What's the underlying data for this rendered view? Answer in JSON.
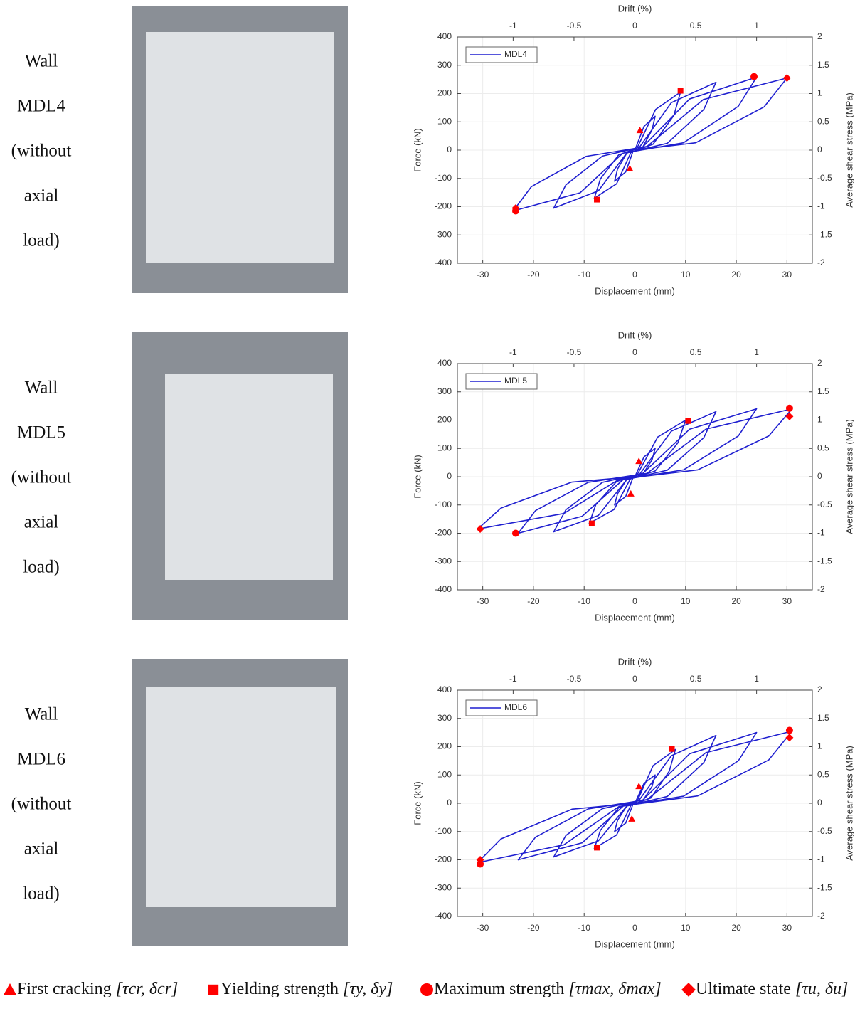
{
  "panels": [
    {
      "label_lines": [
        "Wall",
        "MDL4",
        "(without",
        "axial",
        "load)"
      ]
    },
    {
      "label_lines": [
        "Wall",
        "MDL5",
        "(without",
        "axial",
        "load)"
      ]
    },
    {
      "label_lines": [
        "Wall",
        "MDL6",
        "(without",
        "axial",
        "load)"
      ]
    }
  ],
  "legend": [
    {
      "label": "First cracking",
      "notation": "[τcr, δcr]",
      "color": "#ff0000"
    },
    {
      "label": "Yielding strength",
      "notation": "[τy, δy]",
      "color": "#ff0000"
    },
    {
      "label": "Maximum strength",
      "notation": "[τmax, δmax]",
      "color": "#ff0000"
    },
    {
      "label": "Ultimate state",
      "notation": "[τu, δu]",
      "color": "#ff0000"
    }
  ],
  "chart_data": [
    {
      "type": "line",
      "x_label": "Displacement (mm)",
      "y_label": "Force (kN)",
      "x2_label": "Drift (%)",
      "y2_label": "Average shear stress (MPa)",
      "xlim": [
        -35,
        35
      ],
      "xticks": [
        -30,
        -20,
        -10,
        0,
        10,
        20,
        30
      ],
      "ylim": [
        -400,
        400
      ],
      "yticks": [
        -400,
        -300,
        -200,
        -100,
        0,
        100,
        200,
        300,
        400
      ],
      "x2lim": [
        -1.458,
        1.458
      ],
      "x2ticks": [
        -1,
        -0.5,
        0,
        0.5,
        1
      ],
      "y2lim": [
        -2,
        2
      ],
      "y2ticks": [
        -2,
        -1.5,
        -1,
        -0.5,
        0,
        0.5,
        1,
        1.5,
        2
      ],
      "grid": true,
      "series": [
        {
          "name": "MDL4",
          "color": "#1f1fd0",
          "x": [
            0,
            1.8,
            4,
            3.4,
            1.6,
            -0.4,
            -1.8,
            -4,
            -3.4,
            -1.6,
            0.4,
            4.1,
            9,
            7.7,
            3.6,
            -0.8,
            -3.6,
            -8,
            -6.8,
            -3.2,
            0.9,
            7.2,
            16,
            13.6,
            6.4,
            -1.6,
            -7.2,
            -16,
            -13.6,
            -6.4,
            1.6,
            10.8,
            24,
            20.4,
            9.6,
            -2.4,
            -10.8,
            -24,
            -20.4,
            -9.6,
            2.4,
            13.5,
            30,
            25.5,
            12,
            0
          ],
          "values": [
            0,
            84,
            120,
            72,
            12,
            -6,
            -77,
            -110,
            -66,
            -11,
            6,
            144,
            205,
            123,
            21,
            -9,
            -119,
            -170,
            -102,
            -17,
            10,
            168,
            240,
            144,
            24,
            -10,
            -144,
            -205,
            -123,
            -21,
            12,
            181,
            258,
            155,
            26,
            -11,
            -151,
            -215,
            -129,
            -22,
            13,
            179,
            255,
            153,
            26,
            0
          ]
        }
      ],
      "markers": {
        "x": [
          1,
          -1,
          9,
          -7.5,
          23.5,
          -23.5,
          30,
          -23.5
        ],
        "values": [
          70,
          -65,
          210,
          -175,
          260,
          -215,
          255,
          -205
        ],
        "shape": [
          0,
          0,
          1,
          1,
          2,
          2,
          3,
          3
        ]
      }
    },
    {
      "type": "line",
      "x_label": "Displacement (mm)",
      "y_label": "Force (kN)",
      "x2_label": "Drift (%)",
      "y2_label": "Average shear stress (MPa)",
      "xlim": [
        -35,
        35
      ],
      "xticks": [
        -30,
        -20,
        -10,
        0,
        10,
        20,
        30
      ],
      "ylim": [
        -400,
        400
      ],
      "yticks": [
        -400,
        -300,
        -200,
        -100,
        0,
        100,
        200,
        300,
        400
      ],
      "x2lim": [
        -1.458,
        1.458
      ],
      "x2ticks": [
        -1,
        -0.5,
        0,
        0.5,
        1
      ],
      "y2lim": [
        -2,
        2
      ],
      "y2ticks": [
        -2,
        -1.5,
        -1,
        -0.5,
        0,
        0.5,
        1,
        1.5,
        2
      ],
      "grid": true,
      "series": [
        {
          "name": "MDL5",
          "color": "#1f1fd0",
          "x": [
            0,
            1.8,
            4,
            3.4,
            1.6,
            -0.4,
            -1.8,
            -4,
            -3.4,
            -1.6,
            0.4,
            4.5,
            10,
            8.5,
            4,
            -0.9,
            -4.1,
            -9,
            -7.7,
            -3.6,
            1,
            7.2,
            16,
            13.6,
            6.4,
            -1.6,
            -7.2,
            -16,
            -13.6,
            -6.4,
            1.6,
            10.8,
            24,
            20.4,
            9.6,
            -2.3,
            -10.4,
            -23,
            -19.6,
            -9.2,
            2.4,
            14,
            31,
            26.4,
            12.4,
            -3.1,
            -14,
            -31,
            -26.4,
            -12.4,
            0
          ],
          "values": [
            0,
            70,
            100,
            60,
            10,
            -5,
            -70,
            -100,
            -60,
            -10,
            5,
            140,
            200,
            120,
            20,
            -8,
            -116,
            -165,
            -99,
            -17,
            10,
            161,
            230,
            138,
            23,
            -10,
            -137,
            -195,
            -117,
            -20,
            12,
            168,
            240,
            144,
            24,
            -10,
            -140,
            -200,
            -120,
            -20,
            12,
            168,
            240,
            144,
            24,
            -9,
            -130,
            -185,
            -111,
            -19,
            0
          ]
        }
      ],
      "markers": {
        "x": [
          0.8,
          -0.8,
          10.5,
          -8.5,
          30.5,
          -23.5,
          30.5,
          -30.5
        ],
        "values": [
          55,
          -60,
          197,
          -165,
          242,
          -200,
          213,
          -185
        ],
        "shape": [
          0,
          0,
          1,
          1,
          2,
          2,
          3,
          3
        ]
      }
    },
    {
      "type": "line",
      "x_label": "Displacement (mm)",
      "y_label": "Force (kN)",
      "x2_label": "Drift (%)",
      "y2_label": "Average shear stress (MPa)",
      "xlim": [
        -35,
        35
      ],
      "xticks": [
        -30,
        -20,
        -10,
        0,
        10,
        20,
        30
      ],
      "ylim": [
        -400,
        400
      ],
      "yticks": [
        -400,
        -300,
        -200,
        -100,
        0,
        100,
        200,
        300,
        400
      ],
      "x2lim": [
        -1.458,
        1.458
      ],
      "x2ticks": [
        -1,
        -0.5,
        0,
        0.5,
        1
      ],
      "y2lim": [
        -2,
        2
      ],
      "y2ticks": [
        -2,
        -1.5,
        -1,
        -0.5,
        0,
        0.5,
        1,
        1.5,
        2
      ],
      "grid": true,
      "series": [
        {
          "name": "MDL6",
          "color": "#1f1fd0",
          "x": [
            0,
            1.8,
            4,
            3.4,
            1.6,
            -0.4,
            -1.8,
            -4,
            -3.4,
            -1.6,
            0.4,
            3.6,
            8,
            6.8,
            3.2,
            -0.8,
            -3.6,
            -8,
            -6.8,
            -3.2,
            0.8,
            7.2,
            16,
            13.6,
            6.4,
            -1.6,
            -7.2,
            -16,
            -13.6,
            -6.4,
            1.6,
            10.8,
            24,
            20.4,
            9.6,
            -2.3,
            -10.4,
            -23,
            -19.6,
            -9.2,
            2.4,
            14,
            31,
            26.4,
            12.4,
            -3.1,
            -14,
            -31,
            -26.4,
            -12.4,
            0
          ],
          "values": [
            0,
            70,
            100,
            60,
            10,
            -5,
            -70,
            -100,
            -60,
            -10,
            5,
            133,
            190,
            114,
            19,
            -8,
            -112,
            -160,
            -96,
            -16,
            10,
            168,
            240,
            144,
            24,
            -10,
            -133,
            -190,
            -114,
            -19,
            12,
            175,
            250,
            150,
            25,
            -10,
            -140,
            -200,
            -120,
            -20,
            13,
            179,
            255,
            153,
            26,
            -11,
            -147,
            -210,
            -126,
            -21,
            0
          ]
        }
      ],
      "markers": {
        "x": [
          0.8,
          -0.6,
          7.3,
          -7.5,
          30.5,
          -30.5,
          30.5,
          -30.5
        ],
        "values": [
          60,
          -55,
          192,
          -157,
          258,
          -215,
          232,
          -200
        ],
        "shape": [
          0,
          0,
          1,
          1,
          2,
          2,
          3,
          3
        ]
      }
    }
  ]
}
